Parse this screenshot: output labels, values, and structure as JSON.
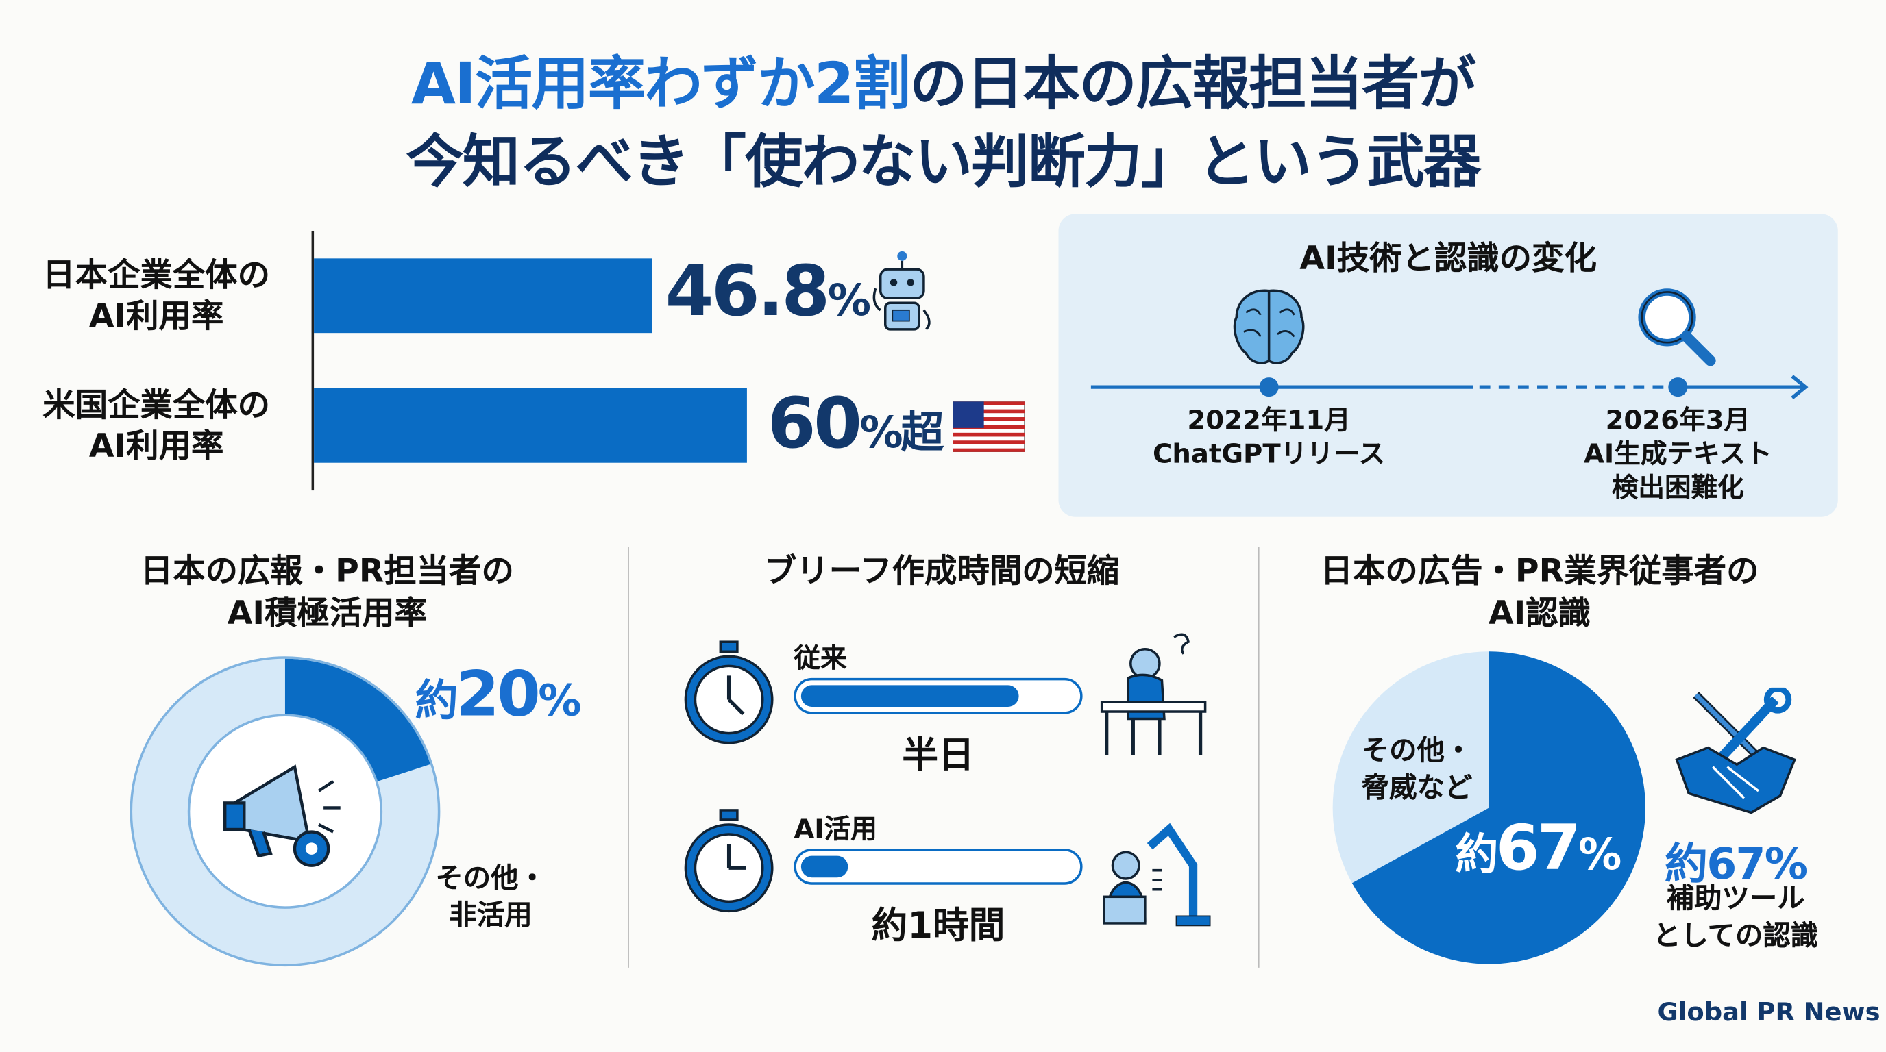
{
  "title": {
    "line1_highlight": "AI活用率わずか2割",
    "line1_rest": "の日本の広報担当者が",
    "line2": "今知るべき「使わない判断力」という武器"
  },
  "comparison": {
    "rows": [
      {
        "label_line1": "日本企業全体の",
        "label_line2": "AI利用率",
        "value_text": "46.8",
        "unit": "%",
        "suffix": "",
        "icon": "robot-icon"
      },
      {
        "label_line1": "米国企業全体の",
        "label_line2": "AI利用率",
        "value_text": "60",
        "unit": "%",
        "suffix": "超",
        "icon": "us-flag-icon"
      }
    ]
  },
  "timeline": {
    "title": "AI技術と認識の変化",
    "events": [
      {
        "date": "2022年11月",
        "text1": "ChatGPTリリース",
        "text2": "",
        "icon": "brain-icon"
      },
      {
        "date": "2026年3月",
        "text1": "AI生成テキスト",
        "text2": "検出困難化",
        "icon": "magnifier-icon"
      }
    ]
  },
  "pr_usage": {
    "title1": "日本の広報・PR担当者の",
    "title2": "AI積極活用率",
    "value_prefix": "約",
    "value_num": "20",
    "value_unit": "%",
    "other1": "その他・",
    "other2": "非活用",
    "icon": "megaphone-icon"
  },
  "brief": {
    "title": "ブリーフ作成時間の短縮",
    "rows": [
      {
        "label": "従来",
        "time": "半日",
        "icon": "stressed-person-icon"
      },
      {
        "label": "AI活用",
        "time": "約1時間",
        "icon": "person-with-robot-arm-icon"
      }
    ]
  },
  "perception": {
    "title1": "日本の広告・PR業界従事者の",
    "title2": "AI認識",
    "other1": "その他・",
    "other2": "脅威など",
    "inner_prefix": "約",
    "inner_value": "67",
    "inner_unit": "%",
    "side_value": "約67%",
    "side1": "補助ツール",
    "side2": "としての認識",
    "icon": "tools-handshake-icon"
  },
  "footer": {
    "brand": "Global PR News"
  },
  "colors": {
    "primary": "#0a6cc4",
    "light": "#d6e9f8",
    "navy": "#12386b",
    "panel": "#e3eff8"
  },
  "chart_data": [
    {
      "type": "bar",
      "orientation": "horizontal",
      "categories": [
        "日本企業全体のAI利用率",
        "米国企業全体のAI利用率"
      ],
      "values": [
        46.8,
        60
      ],
      "unit": "%"
    },
    {
      "type": "pie",
      "style": "donut",
      "slices": [
        {
          "label": "約20%",
          "value": 20
        },
        {
          "label": "その他・非活用",
          "value": 80
        }
      ]
    },
    {
      "type": "bar",
      "style": "progress",
      "categories": [
        "従来",
        "AI活用"
      ],
      "labels": [
        "半日",
        "約1時間"
      ],
      "fill_percent": [
        80,
        20
      ]
    },
    {
      "type": "pie",
      "slices": [
        {
          "label": "約67%",
          "value": 67
        },
        {
          "label": "その他・脅威など",
          "value": 33
        }
      ]
    }
  ]
}
